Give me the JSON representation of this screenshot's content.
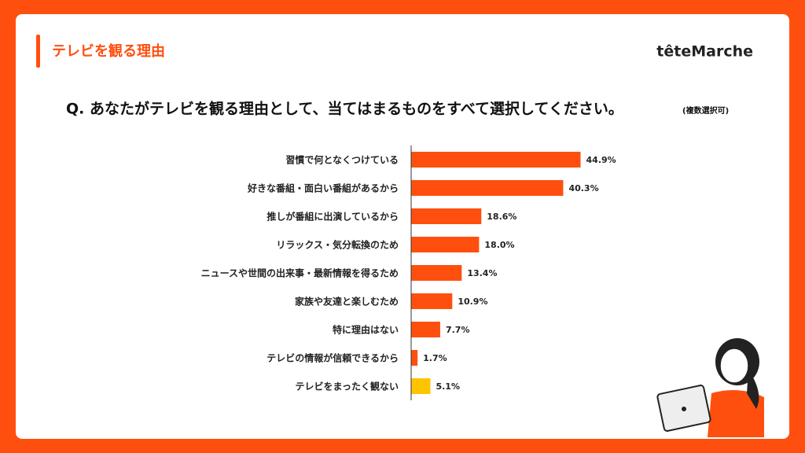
{
  "header": {
    "section": "テレビを観る理由",
    "brand": "têteMarche"
  },
  "chart_data": {
    "type": "bar",
    "orientation": "horizontal",
    "title": "Q. あなたがテレビを観る理由として、当てはまるものをすべて選択してください。",
    "subtitle": "(複数選択可)",
    "categories": [
      "習慣で何となくつけている",
      "好きな番組・面白い番組があるから",
      "推しが番組に出演しているから",
      "リラックス・気分転換のため",
      "ニュースや世間の出来事・最新情報を得るため",
      "家族や友達と楽しむため",
      "特に理由はない",
      "テレビの情報が信頼できるから",
      "テレビをまったく観ない"
    ],
    "values": [
      44.9,
      40.3,
      18.6,
      18.0,
      13.4,
      10.9,
      7.7,
      1.7,
      5.1
    ],
    "value_labels": [
      "44.9%",
      "40.3%",
      "18.6%",
      "18.0%",
      "13.4%",
      "10.9%",
      "7.7%",
      "1.7%",
      "5.1%"
    ],
    "colors": [
      "#ff4f0f",
      "#ff4f0f",
      "#ff4f0f",
      "#ff4f0f",
      "#ff4f0f",
      "#ff4f0f",
      "#ff4f0f",
      "#ff4f0f",
      "#ffc400"
    ],
    "xlim": [
      0,
      50
    ]
  }
}
